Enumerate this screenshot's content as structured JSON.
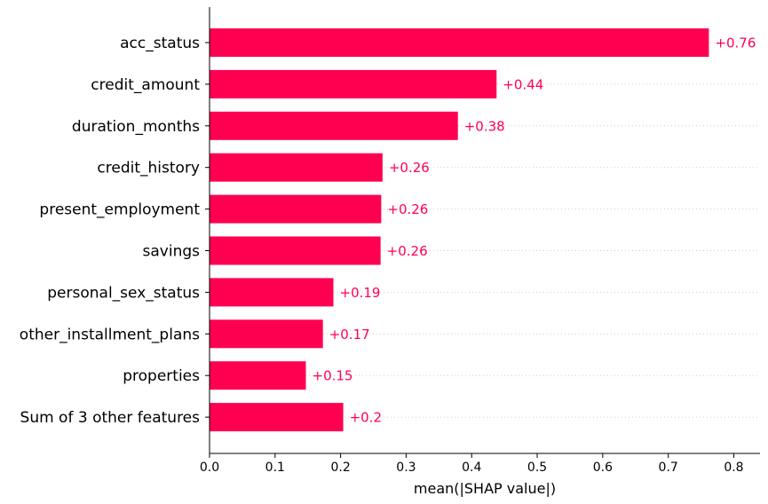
{
  "chart_data": {
    "type": "bar",
    "orientation": "horizontal",
    "categories": [
      "acc_status",
      "credit_amount",
      "duration_months",
      "credit_history",
      "present_employment",
      "savings",
      "personal_sex_status",
      "other_installment_plans",
      "properties",
      "Sum of 3 other features"
    ],
    "values": [
      0.762,
      0.438,
      0.379,
      0.264,
      0.262,
      0.261,
      0.189,
      0.173,
      0.147,
      0.204
    ],
    "value_labels": [
      "+0.76",
      "+0.44",
      "+0.38",
      "+0.26",
      "+0.26",
      "+0.26",
      "+0.19",
      "+0.17",
      "+0.15",
      "+0.2"
    ],
    "title": "",
    "xlabel": "mean(|SHAP value|)",
    "ylabel": "",
    "xlim": [
      0,
      0.84
    ],
    "xticks": [
      0.0,
      0.1,
      0.2,
      0.3,
      0.4,
      0.5,
      0.6,
      0.7,
      0.8
    ],
    "xtick_labels": [
      "0.0",
      "0.1",
      "0.2",
      "0.3",
      "0.4",
      "0.5",
      "0.6",
      "0.7",
      "0.8"
    ],
    "grid": "dotted row guides",
    "legend": "none"
  },
  "colors": {
    "bar": "#ff0051",
    "value_label": "#ff0051",
    "axis": "#000000",
    "guide": "#cccccc"
  }
}
